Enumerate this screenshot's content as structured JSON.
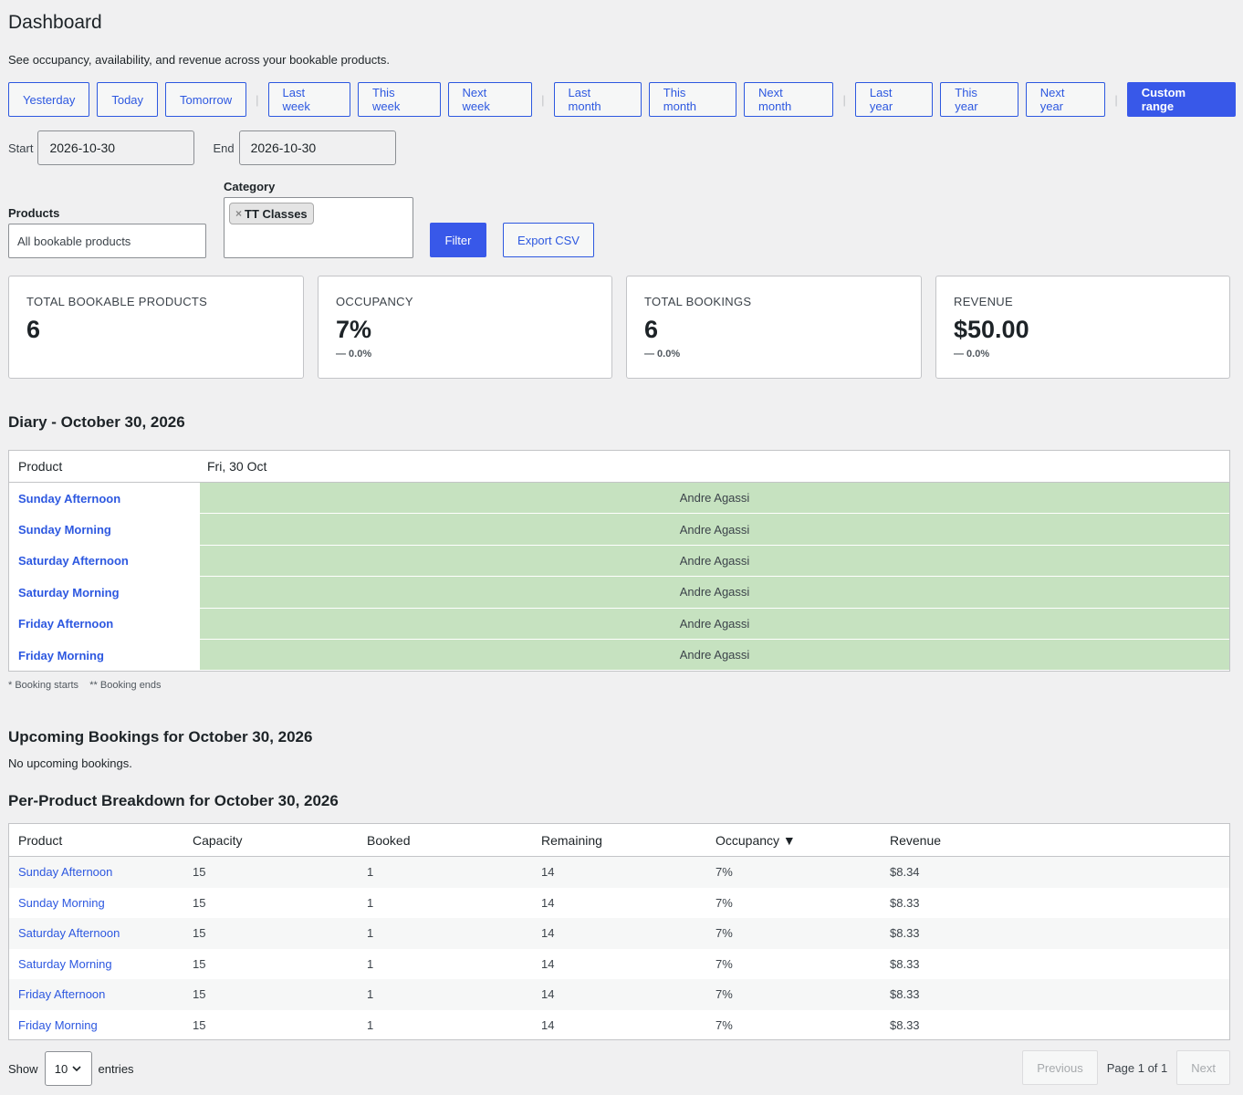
{
  "page": {
    "title": "Dashboard",
    "subtitle": "See occupancy, availability, and revenue across your bookable products."
  },
  "ranges": {
    "yesterday": "Yesterday",
    "today": "Today",
    "tomorrow": "Tomorrow",
    "last_week": "Last week",
    "this_week": "This week",
    "next_week": "Next week",
    "last_month": "Last month",
    "this_month": "This month",
    "next_month": "Next month",
    "last_year": "Last year",
    "this_year": "This year",
    "next_year": "Next year",
    "custom": "Custom range",
    "separator": "|"
  },
  "dates": {
    "start_label": "Start",
    "start_value": "2026-10-30",
    "end_label": "End",
    "end_value": "2026-10-30"
  },
  "filters": {
    "products_label": "Products",
    "products_value": "All bookable products",
    "category_label": "Category",
    "category_chip": "TT Classes",
    "chip_remove": "×",
    "filter_button": "Filter",
    "export_button": "Export CSV"
  },
  "cards": [
    {
      "label": "Total bookable products",
      "value": "6",
      "delta": ""
    },
    {
      "label": "Occupancy",
      "value": "7%",
      "delta": "— 0.0%"
    },
    {
      "label": "Total bookings",
      "value": "6",
      "delta": "— 0.0%"
    },
    {
      "label": "Revenue",
      "value": "$50.00",
      "delta": "— 0.0%"
    }
  ],
  "diary": {
    "title": "Diary - October 30, 2026",
    "col_product": "Product",
    "col_date": "Fri, 30 Oct",
    "rows": [
      {
        "product": "Sunday Afternoon",
        "booking": "Andre Agassi"
      },
      {
        "product": "Sunday Morning",
        "booking": "Andre Agassi"
      },
      {
        "product": "Saturday Afternoon",
        "booking": "Andre Agassi"
      },
      {
        "product": "Saturday Morning",
        "booking": "Andre Agassi"
      },
      {
        "product": "Friday Afternoon",
        "booking": "Andre Agassi"
      },
      {
        "product": "Friday Morning",
        "booking": "Andre Agassi"
      }
    ],
    "legend": "* Booking starts    ** Booking ends",
    "slot_color": "#c6e2c0"
  },
  "upcoming": {
    "title": "Upcoming Bookings for October 30, 2026",
    "empty": "No upcoming bookings."
  },
  "breakdown": {
    "title": "Per-Product Breakdown for October 30, 2026",
    "headers": [
      "Product",
      "Capacity",
      "Booked",
      "Remaining",
      "Occupancy ▼",
      "Revenue"
    ],
    "rows": [
      [
        "Sunday Afternoon",
        "15",
        "1",
        "14",
        "7%",
        "$8.34"
      ],
      [
        "Sunday Morning",
        "15",
        "1",
        "14",
        "7%",
        "$8.33"
      ],
      [
        "Saturday Afternoon",
        "15",
        "1",
        "14",
        "7%",
        "$8.33"
      ],
      [
        "Saturday Morning",
        "15",
        "1",
        "14",
        "7%",
        "$8.33"
      ],
      [
        "Friday Afternoon",
        "15",
        "1",
        "14",
        "7%",
        "$8.33"
      ],
      [
        "Friday Morning",
        "15",
        "1",
        "14",
        "7%",
        "$8.33"
      ]
    ]
  },
  "pagination": {
    "show_label": "Show",
    "entries_value": "10",
    "entries_label": "entries",
    "previous": "Previous",
    "info": "Page 1 of 1",
    "next": "Next"
  },
  "colors": {
    "accent": "#3858e9",
    "link": "#2d58e0",
    "background": "#f0f0f1"
  }
}
